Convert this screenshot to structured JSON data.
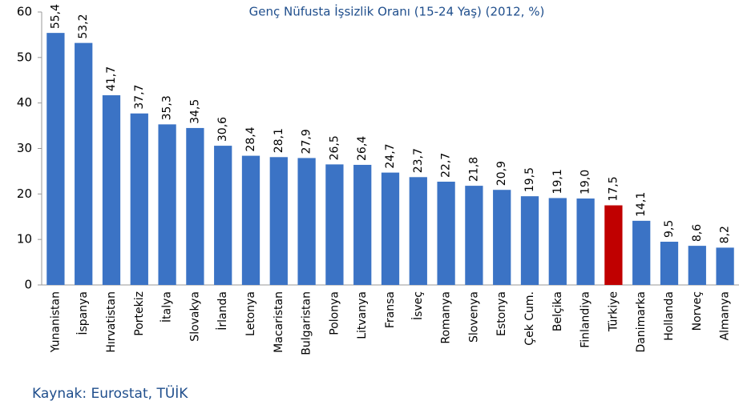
{
  "chart_data": {
    "type": "bar",
    "title": "Genç Nüfusta İşsizlik Oranı (15-24 Yaş) (2012, %)",
    "categories": [
      "Yunanistan",
      "İspanya",
      "Hırvatistan",
      "Portekiz",
      "İtalya",
      "Slovakya",
      "İrlanda",
      "Letonya",
      "Macaristan",
      "Bulgaristan",
      "Polonya",
      "Litvanya",
      "Fransa",
      "İsveç",
      "Romanya",
      "Slovenya",
      "Estonya",
      "Çek Cum.",
      "Belçika",
      "Finlandiya",
      "Türkiye",
      "Danimarka",
      "Hollanda",
      "Norveç",
      "Almanya"
    ],
    "values": [
      55.4,
      53.2,
      41.7,
      37.7,
      35.3,
      34.5,
      30.6,
      28.4,
      28.1,
      27.9,
      26.5,
      26.4,
      24.7,
      23.7,
      22.7,
      21.8,
      20.9,
      19.5,
      19.1,
      19.0,
      17.5,
      14.1,
      9.5,
      8.6,
      8.2
    ],
    "value_labels": [
      "55,4",
      "53,2",
      "41,7",
      "37,7",
      "35,3",
      "34,5",
      "30,6",
      "28,4",
      "28,1",
      "27,9",
      "26,5",
      "26,4",
      "24,7",
      "23,7",
      "22,7",
      "21,8",
      "20,9",
      "19,5",
      "19,1",
      "19,0",
      "17,5",
      "14,1",
      "9,5",
      "8,6",
      "8,2"
    ],
    "colors": [
      "#3b73c5",
      "#3b73c5",
      "#3b73c5",
      "#3b73c5",
      "#3b73c5",
      "#3b73c5",
      "#3b73c5",
      "#3b73c5",
      "#3b73c5",
      "#3b73c5",
      "#3b73c5",
      "#3b73c5",
      "#3b73c5",
      "#3b73c5",
      "#3b73c5",
      "#3b73c5",
      "#3b73c5",
      "#3b73c5",
      "#3b73c5",
      "#3b73c5",
      "#c00000",
      "#3b73c5",
      "#3b73c5",
      "#3b73c5",
      "#3b73c5"
    ],
    "ylim": [
      0,
      60
    ],
    "yticks": [
      0,
      10,
      20,
      30,
      40,
      50,
      60
    ],
    "grid": false,
    "source": "Kaynak: Eurostat, TÜİK"
  }
}
